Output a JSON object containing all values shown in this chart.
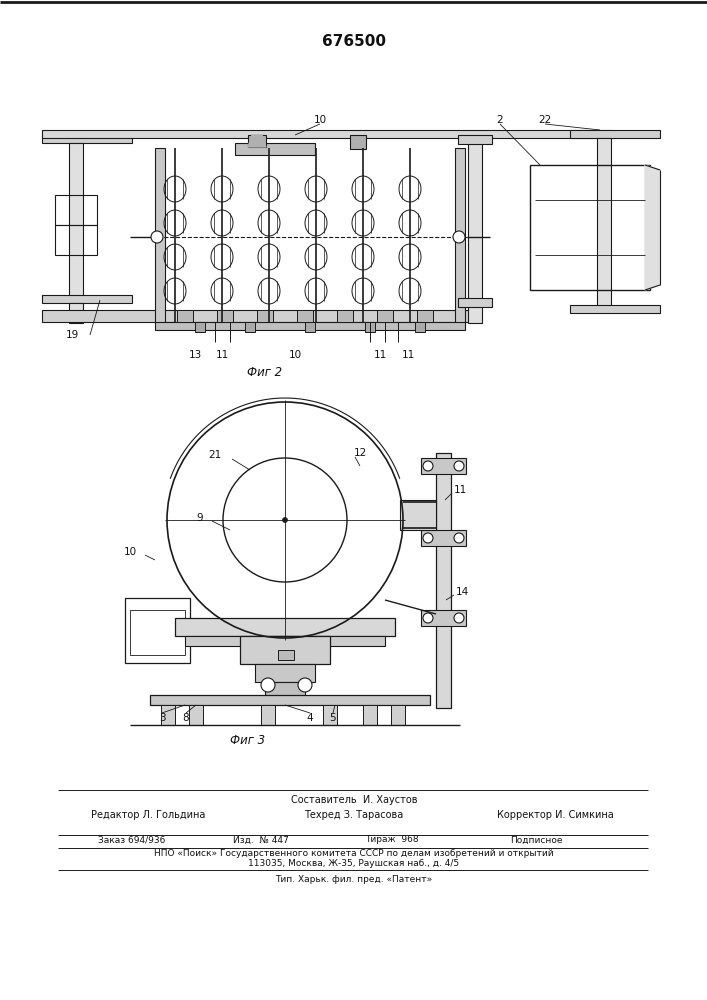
{
  "patent_number": "676500",
  "fig2_label": "Фиг 2",
  "fig3_label": "Фиг 3",
  "footer_line1": "Составитель  И. Хаустов",
  "footer_line2_left": "Редактор Л. Гольдина",
  "footer_line2_mid": "Техред З. Тарасова",
  "footer_line2_right": "Корректор И. Симкина",
  "footer_line3_1": "Заказ 694/936",
  "footer_line3_2": "Изд.  № 447",
  "footer_line3_3": "Тираж  968",
  "footer_line3_4": "Подписное",
  "footer_line4": "НПО «Поиск» Государственного комитета СССР по делам изобретений и открытий",
  "footer_line5": "113035, Москва, Ж-35, Раушская наб., д. 4/5",
  "footer_line6": "Тип. Харьк. фил. пред. «Патент»",
  "bg_color": "#ffffff",
  "line_color": "#1a1a1a",
  "text_color": "#111111"
}
